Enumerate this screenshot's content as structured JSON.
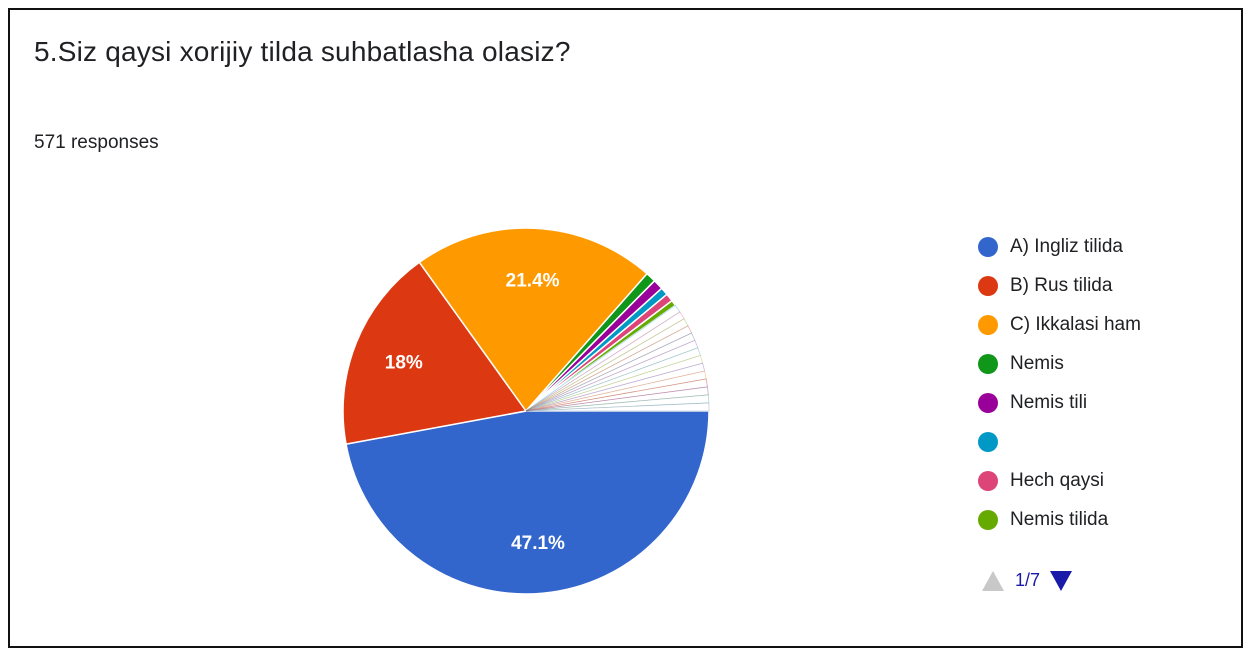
{
  "question": {
    "title": "5.Siz qaysi xorijiy tilda suhbatlasha olasiz?",
    "responses": "571 responses"
  },
  "chart_data": {
    "type": "pie",
    "labels": [
      "A) Ingliz tilida",
      "B) Rus tilida",
      "C) Ikkalasi ham",
      "Nemis",
      "Nemis tili",
      "",
      "Hech qaysi",
      "Nemis tilida"
    ],
    "values": [
      47.1,
      18.0,
      21.4,
      0.9,
      0.9,
      0.7,
      0.7,
      0.5
    ],
    "shown_labels": [
      "47.1%",
      "18%",
      "21.4%"
    ],
    "other_slices_percent": 9.8,
    "colors": [
      "#3366cc",
      "#dc3912",
      "#ff9900",
      "#109618",
      "#990099",
      "#0099c6",
      "#dd4477",
      "#66aa00"
    ],
    "start_angle_deg": 0,
    "direction": "clockwise"
  },
  "legend": {
    "items": [
      {
        "label": "A) Ingliz tilida",
        "color": "#3366cc"
      },
      {
        "label": "B) Rus tilida",
        "color": "#dc3912"
      },
      {
        "label": "C) Ikkalasi ham",
        "color": "#ff9900"
      },
      {
        "label": "Nemis",
        "color": "#109618"
      },
      {
        "label": "Nemis tili",
        "color": "#990099"
      },
      {
        "label": "",
        "color": "#0099c6"
      },
      {
        "label": "Hech qaysi",
        "color": "#dd4477"
      },
      {
        "label": "Nemis tilida",
        "color": "#66aa00"
      }
    ],
    "page": "1/7"
  }
}
